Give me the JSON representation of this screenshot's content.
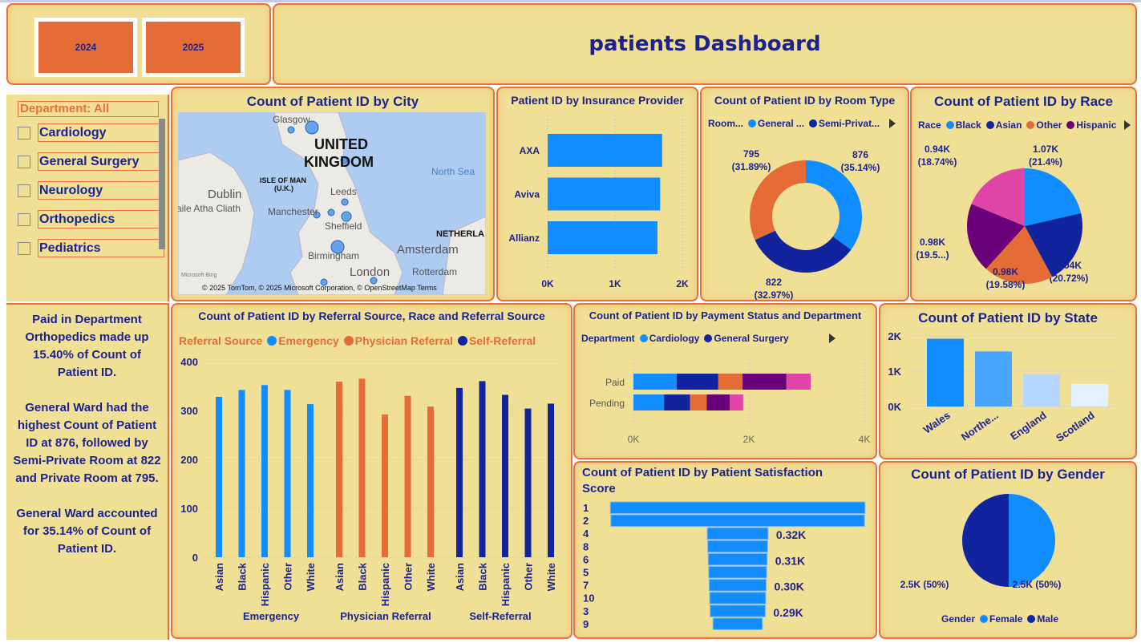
{
  "header": {
    "title": "patients Dashboard",
    "years": [
      "2024",
      "2025"
    ]
  },
  "slicer": {
    "label": "Department: All",
    "items": [
      "Cardiology",
      "General Surgery",
      "Neurology",
      "Orthopedics",
      "Pediatrics"
    ]
  },
  "narrative": [
    "Paid in Department Orthopedics made up 15.40% of Count of Patient ID.",
    "General Ward had the highest Count of Patient ID at 876, followed by Semi-Private Room at 822 and Private Room at 795.",
    "General Ward accounted for 35.14% of Count of Patient ID."
  ],
  "colors": {
    "background": "#F0E096",
    "border": "#E8703A",
    "text": "#1C2390",
    "blue": "#118DFF",
    "dark_blue": "#12239E",
    "orange": "#E66C37",
    "purple": "#6B007B",
    "pink": "#E044A7"
  },
  "map": {
    "title": "Count of Patient ID by City",
    "labels": [
      "Glasgow",
      "UNITED",
      "KINGDOM",
      "ISLE OF MAN",
      "(U.K.)",
      "Dublin",
      "aile Atha Cliath",
      "Leeds",
      "Manchester",
      "Sheffield",
      "North Sea",
      "NETHERLA",
      "Amsterdam",
      "Birmingham",
      "Rotterdam",
      "London"
    ],
    "attribution": "© 2025 TomTom, © 2025 Microsoft Corporation, © OpenStreetMap  Terms",
    "logo": "Microsoft Bing"
  },
  "chart_data": [
    {
      "id": "insurance",
      "type": "bar",
      "orientation": "horizontal",
      "title": "Patient ID by Insurance Provider",
      "categories": [
        "AXA",
        "Aviva",
        "Allianz"
      ],
      "values": [
        1700,
        1670,
        1630
      ],
      "xticks": [
        "0K",
        "1K",
        "2K"
      ],
      "xlim": [
        0,
        2000
      ]
    },
    {
      "id": "room",
      "type": "pie",
      "donut": true,
      "title": "Count of Patient ID by Room Type",
      "legend_title": "Room...",
      "legend": [
        "General ...",
        "Semi-Privat..."
      ],
      "slices": [
        {
          "name": "General Ward",
          "value": 876,
          "label": "876",
          "pct": "(35.14%)",
          "color": "#118DFF"
        },
        {
          "name": "Semi-Private Room",
          "value": 822,
          "label": "822",
          "pct": "(32.97%)",
          "color": "#12239E"
        },
        {
          "name": "Private Room",
          "value": 795,
          "label": "795",
          "pct": "(31.89%)",
          "color": "#E66C37"
        }
      ]
    },
    {
      "id": "race",
      "type": "pie",
      "title": "Count of Patient ID by Race",
      "legend_title": "Race",
      "legend": [
        "Black",
        "Asian",
        "Other",
        "Hispanic"
      ],
      "slices": [
        {
          "name": "Black",
          "value": 1070,
          "label": "1.07K",
          "pct": "(21.4%)",
          "color": "#118DFF"
        },
        {
          "name": "Asian",
          "value": 1036,
          "label": "1.04K",
          "pct": "(20.72%)",
          "color": "#12239E"
        },
        {
          "name": "Other",
          "value": 979,
          "label": "0.98K",
          "pct": "(19.58%)",
          "color": "#E66C37"
        },
        {
          "name": "Hispanic",
          "value": 978,
          "label": "0.98K",
          "pct": "(19.5...)",
          "color": "#6B007B"
        },
        {
          "name": "",
          "value": 937,
          "label": "0.94K",
          "pct": "(18.74%)",
          "color": "#E044A7"
        }
      ]
    },
    {
      "id": "referral",
      "type": "bar",
      "title": "Count of Patient ID by Referral Source, Race and Referral Source",
      "legend_title": "Referral Source",
      "categories": [
        "Asian",
        "Black",
        "Hispanic",
        "Other",
        "White"
      ],
      "series": [
        {
          "name": "Emergency",
          "color": "#118DFF",
          "values": [
            328,
            342,
            352,
            342,
            313
          ]
        },
        {
          "name": "Physician Referral",
          "color": "#E66C37",
          "values": [
            359,
            365,
            292,
            330,
            308
          ]
        },
        {
          "name": "Self-Referral",
          "color": "#12239E",
          "values": [
            346,
            360,
            332,
            304,
            314
          ]
        }
      ],
      "yticks": [
        "0",
        "100",
        "200",
        "300",
        "400"
      ],
      "ylim": [
        0,
        400
      ],
      "grid": true
    },
    {
      "id": "payment",
      "type": "bar",
      "orientation": "horizontal",
      "stacked": true,
      "title": "Count of Patient ID by Payment Status and Department",
      "legend_title": "Department",
      "categories": [
        "Paid",
        "Pending"
      ],
      "series": [
        {
          "name": "Cardiology",
          "color": "#118DFF",
          "values": [
            750,
            530
          ]
        },
        {
          "name": "General Surgery",
          "color": "#12239E",
          "values": [
            720,
            450
          ]
        },
        {
          "name": "",
          "color": "#E66C37",
          "values": [
            420,
            290
          ]
        },
        {
          "name": "",
          "color": "#6B007B",
          "values": [
            760,
            400
          ]
        },
        {
          "name": "",
          "color": "#E044A7",
          "values": [
            420,
            230
          ]
        }
      ],
      "xticks": [
        "0K",
        "2K",
        "4K"
      ],
      "xlim": [
        0,
        4000
      ]
    },
    {
      "id": "state",
      "type": "bar",
      "title": "Count of Patient ID by State",
      "categories": [
        "Wales",
        "Northe...",
        "England",
        "Scotland"
      ],
      "values": [
        1920,
        1560,
        920,
        640
      ],
      "colors": [
        "#118DFF",
        "#4AA5FF",
        "#B5D7FF",
        "#E3F0FF"
      ],
      "yticks": [
        "0K",
        "1K",
        "2K"
      ],
      "ylim": [
        0,
        2000
      ],
      "grid": true
    },
    {
      "id": "satisfaction",
      "type": "bar",
      "subtype": "funnel",
      "title": "Count of Patient ID by Patient Satisfaction Score",
      "categories": [
        "1",
        "2",
        "4",
        "8",
        "6",
        "5",
        "7",
        "10",
        "3",
        "9"
      ],
      "values": [
        1340,
        1335,
        320,
        315,
        310,
        305,
        300,
        295,
        290,
        260
      ],
      "data_labels": [
        "",
        "",
        "0.32K",
        "",
        "0.31K",
        "",
        "0.30K",
        "",
        "0.29K",
        ""
      ]
    },
    {
      "id": "gender",
      "type": "pie",
      "title": "Count of Patient ID by Gender",
      "legend_title": "Gender",
      "legend": [
        "Female",
        "Male"
      ],
      "slices": [
        {
          "name": "Female",
          "value": 2500,
          "label": "2.5K (50%)",
          "color": "#118DFF"
        },
        {
          "name": "Male",
          "value": 2500,
          "label": "2.5K (50%)",
          "color": "#12239E"
        }
      ]
    }
  ]
}
